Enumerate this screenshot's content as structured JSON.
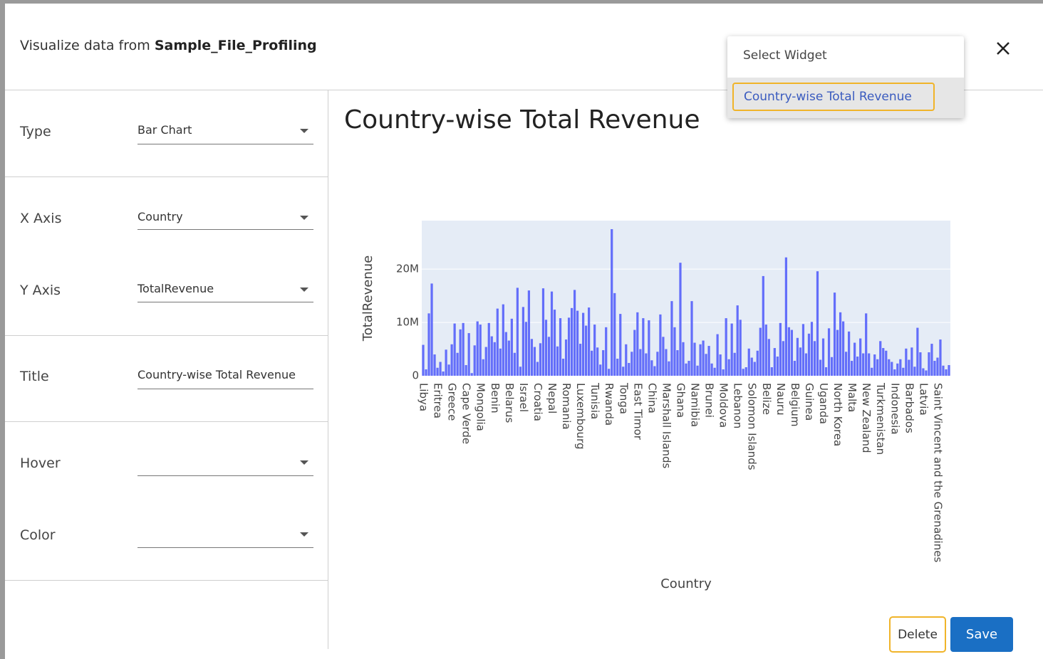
{
  "header": {
    "title_prefix": "Visualize data from",
    "title_file": "Sample_File_Profiling"
  },
  "widget_menu": {
    "placeholder": "Select Widget",
    "items": [
      "Country-wise Total Revenue"
    ]
  },
  "form": {
    "fields": [
      {
        "label": "Type",
        "value": "Bar Chart"
      },
      {
        "label": "X Axis",
        "value": "Country"
      },
      {
        "label": "Y Axis",
        "value": "TotalRevenue"
      },
      {
        "label": "Title",
        "value": "Country-wise Total Revenue"
      },
      {
        "label": "Hover"
      },
      {
        "label": "Color"
      }
    ]
  },
  "buttons": {
    "delete": "Delete",
    "save": "Save"
  },
  "chart_data": {
    "type": "bar",
    "title": "Country-wise Total Revenue",
    "x_label": "Country",
    "y_label": "TotalRevenue",
    "color": "#636efa",
    "grid": true,
    "ylim": [
      0,
      29100000.0
    ],
    "yticks": [
      0,
      {
        "value": 10000000.0,
        "label": "10M"
      },
      {
        "value": 20000000.0,
        "label": "20M"
      }
    ],
    "categories": [
      "Libya",
      null,
      null,
      null,
      null,
      "Eritrea",
      null,
      null,
      null,
      null,
      "Greece",
      null,
      null,
      null,
      null,
      "Cape Verde",
      null,
      null,
      null,
      null,
      "Mongolia",
      null,
      null,
      null,
      null,
      "Benin",
      null,
      null,
      null,
      null,
      "Belarus",
      null,
      null,
      null,
      null,
      "Israel",
      null,
      null,
      null,
      null,
      "Croatia",
      null,
      null,
      null,
      null,
      "Nepal",
      null,
      null,
      null,
      null,
      "Romania",
      null,
      null,
      null,
      null,
      "Luxembourg",
      null,
      null,
      null,
      null,
      "Tunisia",
      null,
      null,
      null,
      null,
      "Rwanda",
      null,
      null,
      null,
      null,
      "Tonga",
      null,
      null,
      null,
      null,
      "East Timor",
      null,
      null,
      null,
      null,
      "China",
      null,
      null,
      null,
      null,
      "Marshall Islands",
      null,
      null,
      null,
      null,
      "Ghana",
      null,
      null,
      null,
      null,
      "Namibia",
      null,
      null,
      null,
      null,
      "Brunei",
      null,
      null,
      null,
      null,
      "Moldova",
      null,
      null,
      null,
      null,
      "Lebanon",
      null,
      null,
      null,
      null,
      "Solomon Islands",
      null,
      null,
      null,
      null,
      "Belize",
      null,
      null,
      null,
      null,
      "Nauru",
      null,
      null,
      null,
      null,
      "Belgium",
      null,
      null,
      null,
      null,
      "Guinea",
      null,
      null,
      null,
      null,
      "Uganda",
      null,
      null,
      null,
      null,
      "North Korea",
      null,
      null,
      null,
      null,
      "Malta",
      null,
      null,
      null,
      null,
      "New Zealand",
      null,
      null,
      null,
      null,
      "Turkmenistan",
      null,
      null,
      null,
      null,
      "Indonesia",
      null,
      null,
      null,
      null,
      "Barbados",
      null,
      null,
      null,
      null,
      "Latvia",
      null,
      null,
      null,
      null,
      "Saint Vincent and the Grenadines",
      null,
      null,
      null,
      null
    ],
    "values": [
      5800000.0,
      1200000.0,
      11700000.0,
      17300000.0,
      4000000.0,
      1500000.0,
      2600000.0,
      800000.0,
      4900000.0,
      2100000.0,
      5900000.0,
      9800000.0,
      4300000.0,
      8700000.0,
      9900000.0,
      2000000.0,
      8000000.0,
      500000.0,
      5700000.0,
      10200000.0,
      9600000.0,
      3100000.0,
      5400000.0,
      9900000.0,
      7400000.0,
      6300000.0,
      12600000.0,
      5100000.0,
      13400000.0,
      8200000.0,
      6600000.0,
      10700000.0,
      4300000.0,
      16500000.0,
      1700000.0,
      12900000.0,
      10100000.0,
      16000000.0,
      6900000.0,
      5400000.0,
      2600000.0,
      6100000.0,
      16400000.0,
      10500000.0,
      7300000.0,
      15800000.0,
      12400000.0,
      5500000.0,
      10800000.0,
      3200000.0,
      6800000.0,
      10900000.0,
      12700000.0,
      16100000.0,
      12200000.0,
      6000000.0,
      11800000.0,
      9400000.0,
      12800000.0,
      4700000.0,
      9600000.0,
      5300000.0,
      2100000.0,
      4800000.0,
      9100000.0,
      1300000.0,
      27500000.0,
      15500000.0,
      3200000.0,
      11600000.0,
      1700000.0,
      5900000.0,
      2400000.0,
      4500000.0,
      8600000.0,
      11900000.0,
      5000000.0,
      10800000.0,
      4200000.0,
      10400000.0,
      2900000.0,
      1800000.0,
      4500000.0,
      11500000.0,
      7300000.0,
      5000000.0,
      2700000.0,
      14000000.0,
      9100000.0,
      4800000.0,
      21200000.0,
      6300000.0,
      2300000.0,
      2800000.0,
      14000000.0,
      6200000.0,
      1900000.0,
      5900000.0,
      6600000.0,
      4100000.0,
      5600000.0,
      2300000.0,
      1500000.0,
      7800000.0,
      4000000.0,
      1200000.0,
      10800000.0,
      3100000.0,
      9800000.0,
      4300000.0,
      13200000.0,
      10500000.0,
      1300000.0,
      1600000.0,
      5100000.0,
      3400000.0,
      2600000.0,
      4700000.0,
      9000000.0,
      18700000.0,
      9600000.0,
      6900000.0,
      1600000.0,
      5200000.0,
      3600000.0,
      9900000.0,
      6500000.0,
      22200000.0,
      9100000.0,
      8600000.0,
      2800000.0,
      7100000.0,
      5300000.0,
      9700000.0,
      4200000.0,
      7900000.0,
      10100000.0,
      6500000.0,
      19600000.0,
      3000000.0,
      7000000.0,
      1600000.0,
      8900000.0,
      3500000.0,
      15600000.0,
      8600000.0,
      11900000.0,
      10200000.0,
      4500000.0,
      8300000.0,
      2800000.0,
      6200000.0,
      3600000.0,
      7000000.0,
      4200000.0,
      11700000.0,
      4200000.0,
      1500000.0,
      4000000.0,
      3100000.0,
      6500000.0,
      5200000.0,
      4700000.0,
      3100000.0,
      2600000.0,
      1200000.0,
      2300000.0,
      3100000.0,
      1500000.0,
      5100000.0,
      3000000.0,
      5300000.0,
      1700000.0,
      9000000.0,
      4400000.0,
      1400000.0,
      1000000.0,
      4400000.0,
      6000000.0,
      2800000.0,
      3400000.0,
      6800000.0,
      1900000.0,
      1200000.0,
      2000000.0
    ]
  }
}
